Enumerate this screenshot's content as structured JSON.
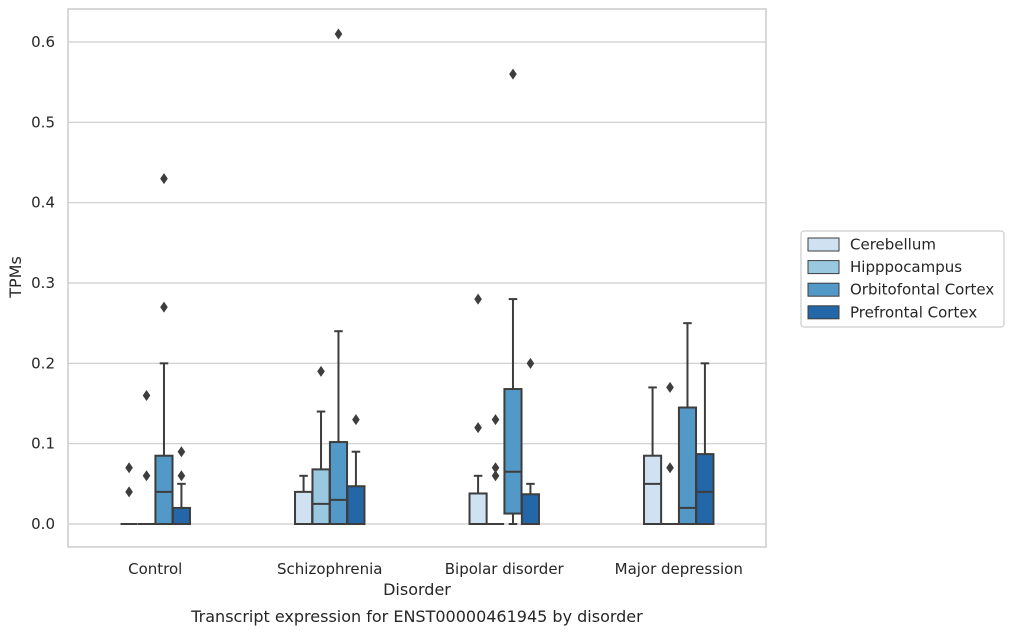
{
  "chart_data": {
    "type": "box",
    "xlabel": "Disorder",
    "ylabel": "TPMs",
    "caption": "Transcript expression for ENST00000461945 by disorder",
    "categories": [
      "Control",
      "Schizophrenia",
      "Bipolar disorder",
      "Major depression"
    ],
    "ylim": [
      -0.03,
      0.64
    ],
    "yticks": [
      0.0,
      0.1,
      0.2,
      0.3,
      0.4,
      0.5,
      0.6
    ],
    "ytick_labels": [
      "0.0",
      "0.1",
      "0.2",
      "0.3",
      "0.4",
      "0.5",
      "0.6"
    ],
    "grid": true,
    "legend_position": "right",
    "series": [
      {
        "name": "Cerebellum",
        "color": "#d0e1f2",
        "boxes": [
          {
            "whislo": 0.0,
            "q1": 0.0,
            "med": 0.0,
            "q3": 0.0,
            "whishi": 0.0,
            "fliers": [
              0.04,
              0.07
            ]
          },
          {
            "whislo": 0.0,
            "q1": 0.0,
            "med": 0.0,
            "q3": 0.04,
            "whishi": 0.06,
            "fliers": []
          },
          {
            "whislo": 0.0,
            "q1": 0.0,
            "med": 0.0,
            "q3": 0.038,
            "whishi": 0.06,
            "fliers": [
              0.12,
              0.28
            ]
          },
          {
            "whislo": 0.0,
            "q1": 0.0,
            "med": 0.05,
            "q3": 0.085,
            "whishi": 0.17,
            "fliers": []
          }
        ]
      },
      {
        "name": "Hipppocampus",
        "color": "#9ac8e0",
        "boxes": [
          {
            "whislo": 0.0,
            "q1": 0.0,
            "med": 0.0,
            "q3": 0.0,
            "whishi": 0.0,
            "fliers": [
              0.06,
              0.16
            ]
          },
          {
            "whislo": 0.0,
            "q1": 0.0,
            "med": 0.025,
            "q3": 0.068,
            "whishi": 0.14,
            "fliers": [
              0.19
            ]
          },
          {
            "whislo": 0.0,
            "q1": 0.0,
            "med": 0.0,
            "q3": 0.0,
            "whishi": 0.0,
            "fliers": [
              0.06,
              0.07,
              0.13
            ]
          },
          {
            "whislo": 0.0,
            "q1": 0.0,
            "med": 0.0,
            "q3": 0.0,
            "whishi": 0.0,
            "fliers": [
              0.07,
              0.17
            ]
          }
        ]
      },
      {
        "name": "Orbitofontal Cortex",
        "color": "#5399c7",
        "boxes": [
          {
            "whislo": 0.0,
            "q1": 0.0,
            "med": 0.04,
            "q3": 0.085,
            "whishi": 0.2,
            "fliers": [
              0.27,
              0.43
            ]
          },
          {
            "whislo": 0.0,
            "q1": 0.0,
            "med": 0.03,
            "q3": 0.102,
            "whishi": 0.24,
            "fliers": [
              0.61
            ]
          },
          {
            "whislo": 0.0,
            "q1": 0.013,
            "med": 0.065,
            "q3": 0.168,
            "whishi": 0.28,
            "fliers": [
              0.56
            ]
          },
          {
            "whislo": 0.0,
            "q1": 0.0,
            "med": 0.02,
            "q3": 0.145,
            "whishi": 0.25,
            "fliers": []
          }
        ]
      },
      {
        "name": "Prefrontal Cortex",
        "color": "#2367a8",
        "boxes": [
          {
            "whislo": 0.0,
            "q1": 0.0,
            "med": 0.0,
            "q3": 0.02,
            "whishi": 0.05,
            "fliers": [
              0.06,
              0.09
            ]
          },
          {
            "whislo": 0.0,
            "q1": 0.0,
            "med": 0.0,
            "q3": 0.047,
            "whishi": 0.09,
            "fliers": [
              0.13
            ]
          },
          {
            "whislo": 0.0,
            "q1": 0.0,
            "med": 0.0,
            "q3": 0.037,
            "whishi": 0.05,
            "fliers": [
              0.2
            ]
          },
          {
            "whislo": 0.0,
            "q1": 0.0,
            "med": 0.04,
            "q3": 0.087,
            "whishi": 0.2,
            "fliers": []
          }
        ]
      }
    ]
  }
}
